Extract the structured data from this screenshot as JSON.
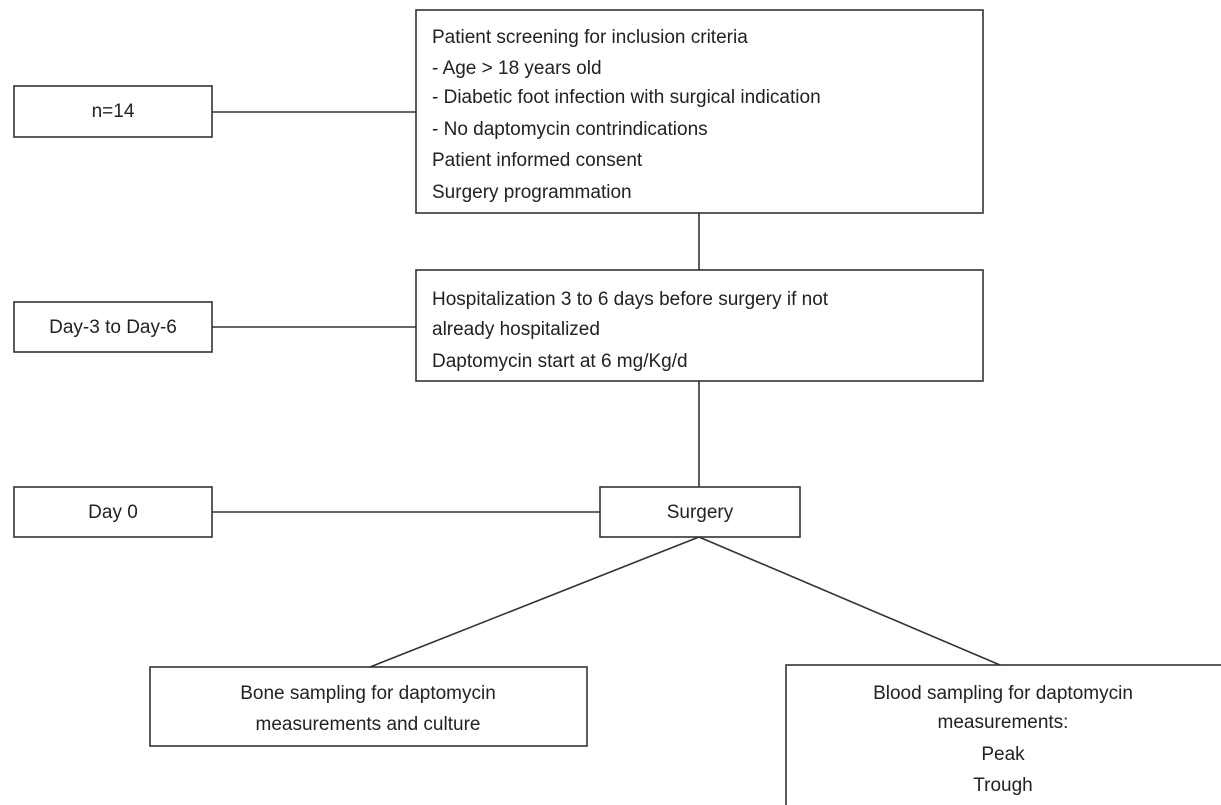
{
  "nodes": [
    {
      "lines": [
        "n=14"
      ]
    },
    {
      "lines": [
        "Patient screening for inclusion criteria",
        "- Age > 18 years old",
        "- Diabetic foot infection with surgical indication",
        "- No daptomycin contrindications",
        "Patient informed consent",
        "Surgery programmation"
      ]
    },
    {
      "lines": [
        "Day-3 to Day-6"
      ]
    },
    {
      "lines": [
        "Hospitalization 3 to 6 days before surgery if not",
        "already hospitalized",
        "Daptomycin start at 6 mg/Kg/d"
      ]
    },
    {
      "lines": [
        "Day 0"
      ]
    },
    {
      "lines": [
        "Surgery"
      ]
    },
    {
      "lines": [
        "Bone sampling for daptomycin",
        "measurements and culture"
      ]
    },
    {
      "lines": [
        "Blood sampling for daptomycin",
        "measurements:",
        "Peak",
        "Trough"
      ]
    }
  ]
}
